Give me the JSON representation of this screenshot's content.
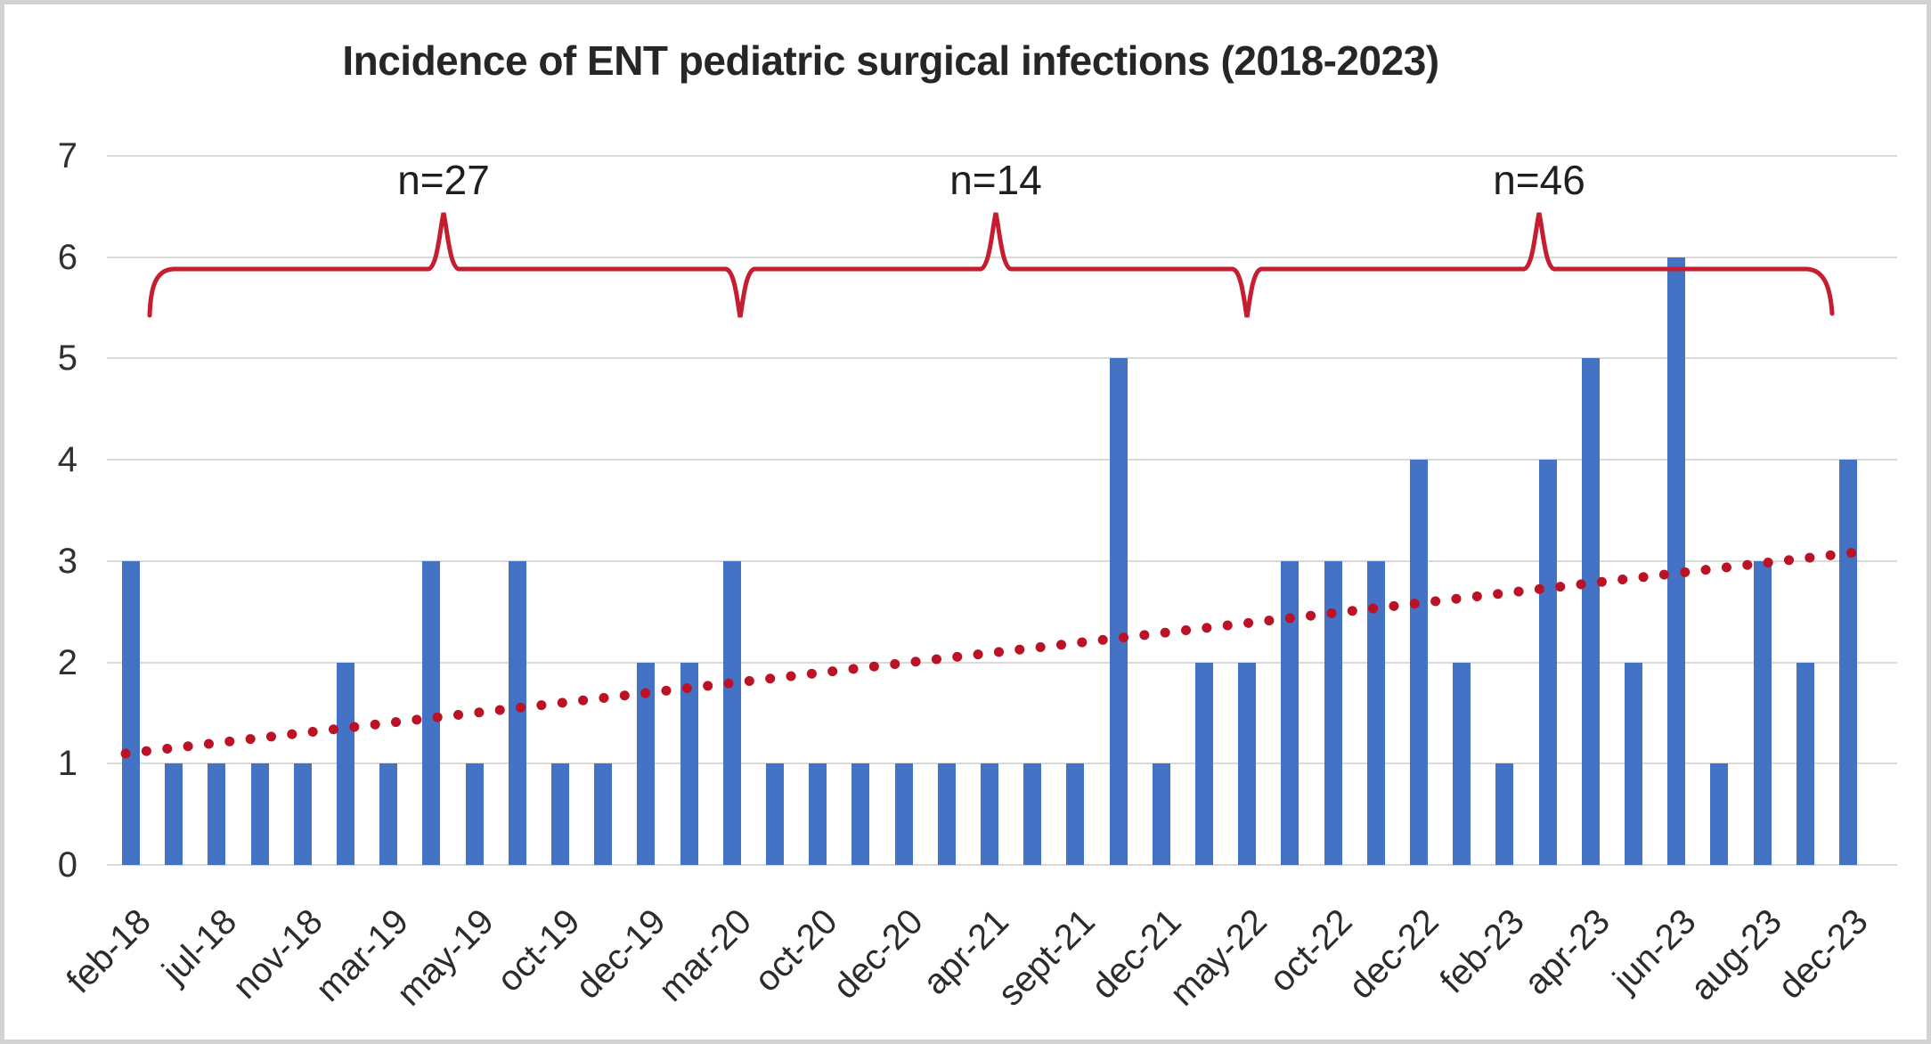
{
  "title": "Incidence of ENT pediatric surgical infections (2018-2023)",
  "colors": {
    "bar": "#4472c4",
    "brace_red": "#c41e30",
    "trend_red": "#bc1226",
    "gridline": "#d9d9d9",
    "title_text": "#262626",
    "axis_text": "#2b2b2b"
  },
  "chart_data": {
    "type": "bar",
    "title": "Incidence of ENT pediatric surgical infections (2018-2023)",
    "xlabel": "",
    "ylabel": "",
    "ylim": [
      0,
      7
    ],
    "yticks": [
      0,
      1,
      2,
      3,
      4,
      5,
      6,
      7
    ],
    "grid": true,
    "legend": false,
    "categories": [
      "feb-18",
      "",
      "jul-18",
      "",
      "nov-18",
      "",
      "mar-19",
      "",
      "may-19",
      "",
      "oct-19",
      "",
      "dec-19",
      "",
      "mar-20",
      "",
      "oct-20",
      "",
      "dec-20",
      "",
      "apr-21",
      "",
      "sept-21",
      "",
      "dec-21",
      "",
      "may-22",
      "",
      "oct-22",
      "",
      "dec-22",
      "",
      "feb-23",
      "",
      "apr-23",
      "",
      "jun-23",
      "",
      "aug-23",
      "",
      "dec-23"
    ],
    "values": [
      3,
      1,
      1,
      1,
      1,
      2,
      1,
      3,
      1,
      3,
      1,
      1,
      2,
      2,
      3,
      1,
      1,
      1,
      1,
      1,
      1,
      1,
      1,
      5,
      1,
      2,
      2,
      3,
      3,
      3,
      4,
      2,
      1,
      4,
      5,
      2,
      6,
      1,
      3,
      2,
      4
    ],
    "groups": [
      {
        "label": "n=27",
        "count": 27
      },
      {
        "label": "n=14",
        "count": 14
      },
      {
        "label": "n=46",
        "count": 46
      }
    ],
    "trendline": {
      "style": "dotted",
      "shape": "linear",
      "start_value": 1.1,
      "end_value": 3.1
    }
  }
}
